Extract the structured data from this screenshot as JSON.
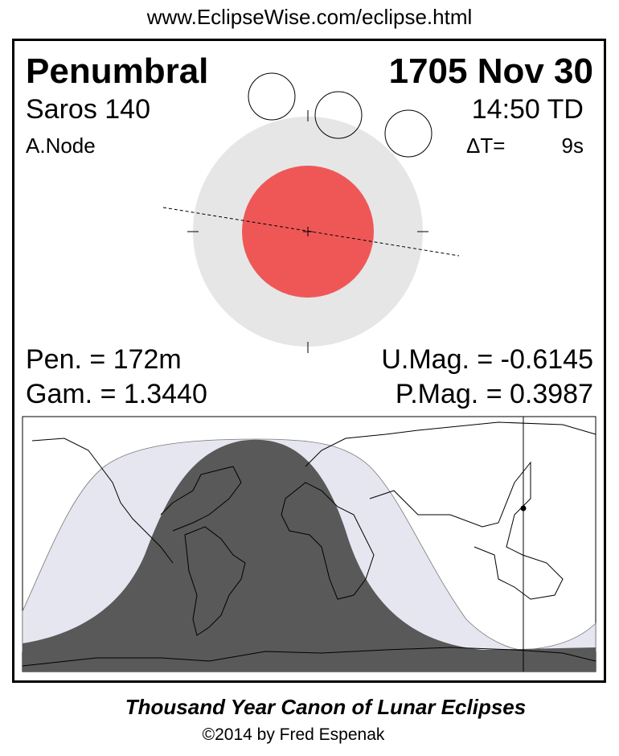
{
  "url": "www.EclipseWise.com/eclipse.html",
  "eclipse_type": "Penumbral",
  "date": "1705 Nov 30",
  "saros": "Saros 140",
  "time": "14:50 TD",
  "node": "A.Node",
  "delta_t_label": "ΔT=",
  "delta_t_value": "9s",
  "pen_duration": "Pen. = 172m",
  "gamma": "Gam. = 1.3440",
  "umbral_mag": "U.Mag. = -0.6145",
  "penumbral_mag": "P.Mag. = 0.3987",
  "footer_title": "Thousand Year Canon of Lunar Eclipses",
  "copyright": "©2014 by Fred Espenak",
  "colors": {
    "penumbra": "#e6e6e6",
    "umbra": "#ef5757",
    "map_night": "#595959",
    "map_penumbral": "#e6e6f0"
  }
}
